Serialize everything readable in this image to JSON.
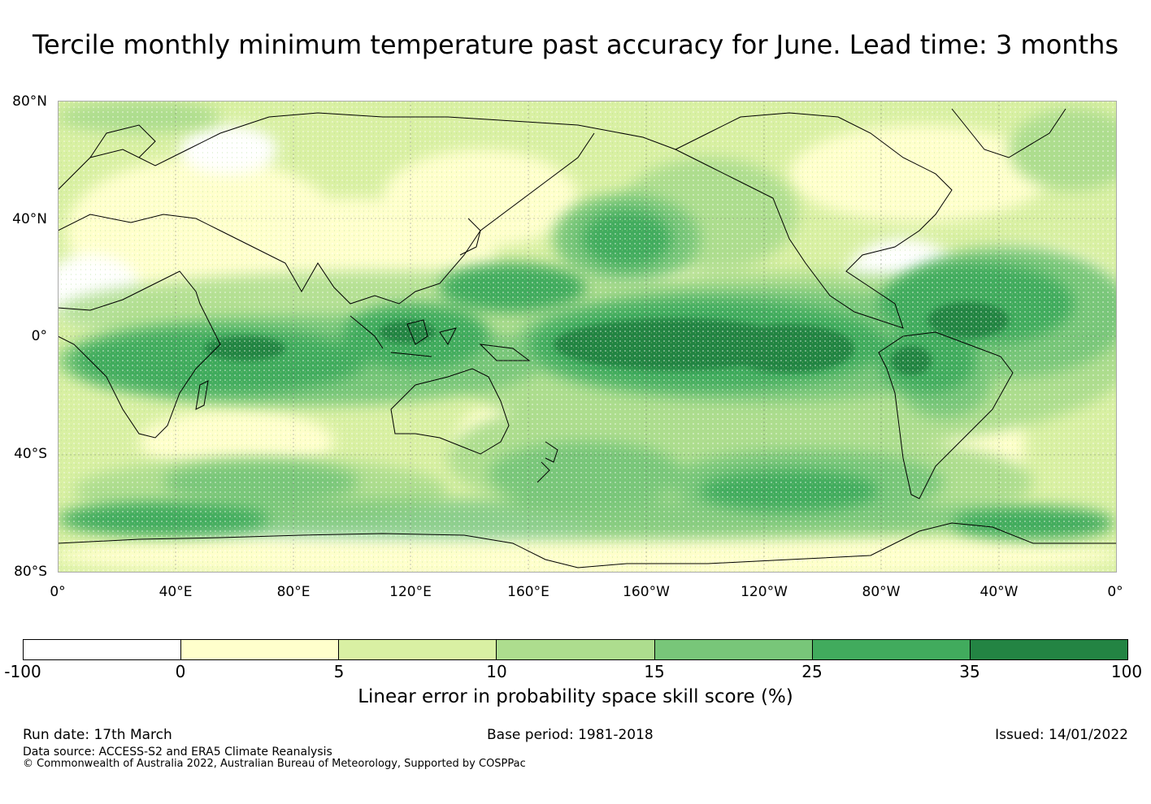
{
  "title": "Tercile monthly minimum temperature past accuracy for June. Lead time: 3 months",
  "map": {
    "projection": "equirectangular",
    "lon_range": [
      0,
      360
    ],
    "lat_range": [
      -80,
      80
    ],
    "lat_labels": [
      "80°N",
      "40°N",
      "0°",
      "40°S",
      "80°S"
    ],
    "lon_labels": [
      "0°",
      "40°E",
      "80°E",
      "120°E",
      "160°E",
      "160°W",
      "120°W",
      "80°W",
      "40°W",
      "0°"
    ],
    "grid": true,
    "coastlines": true
  },
  "colorbar": {
    "label": "Linear error in probability space skill score (%)",
    "ticks": [
      "-100",
      "0",
      "5",
      "10",
      "15",
      "25",
      "35",
      "100"
    ],
    "colors": [
      "#ffffff",
      "#ffffcc",
      "#d9f0a3",
      "#addd8e",
      "#78c679",
      "#41ab5d",
      "#238443"
    ]
  },
  "footer": {
    "run_date": "Run date: 17th March",
    "base_period": "Base period: 1981-2018",
    "issued": "Issued: 14/01/2022",
    "data_source": "Data source: ACCESS-S2 and ERA5 Climate Reanalysis",
    "copyright": "© Commonwealth of Australia 2022, Australian Bureau of Meteorology, Supported by COSPPac"
  }
}
